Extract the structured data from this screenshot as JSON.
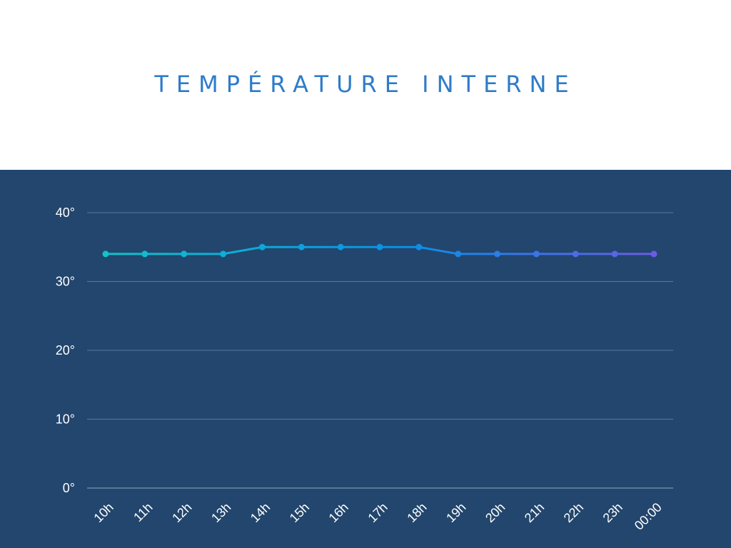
{
  "page": {
    "title": "TEMPÉRATURE INTERNE",
    "colors": {
      "title": "#2f7bc9",
      "background_top": "#ffffff",
      "background_chart": "#22466d",
      "gridline": "#5b7899",
      "axis_text": "#ffffff"
    }
  },
  "chart_data": {
    "type": "line",
    "title": "TEMPÉRATURE INTERNE",
    "xlabel": "",
    "ylabel": "",
    "categories": [
      "10h",
      "11h",
      "12h",
      "13h",
      "14h",
      "15h",
      "16h",
      "17h",
      "18h",
      "19h",
      "20h",
      "21h",
      "22h",
      "23h",
      "00:00"
    ],
    "series": [
      {
        "values": [
          34,
          34,
          34,
          34,
          35,
          35,
          35,
          35,
          35,
          34,
          34,
          34,
          34,
          34,
          34
        ],
        "gradient": [
          "#12c2c9",
          "#0a8ee8",
          "#6a5ce6"
        ]
      }
    ],
    "yticks": [
      0,
      10,
      20,
      30,
      40
    ],
    "ytick_labels": [
      "0°",
      "10°",
      "20°",
      "30°",
      "40°"
    ],
    "ylim": [
      0,
      40
    ],
    "grid": true,
    "legend": "none"
  }
}
